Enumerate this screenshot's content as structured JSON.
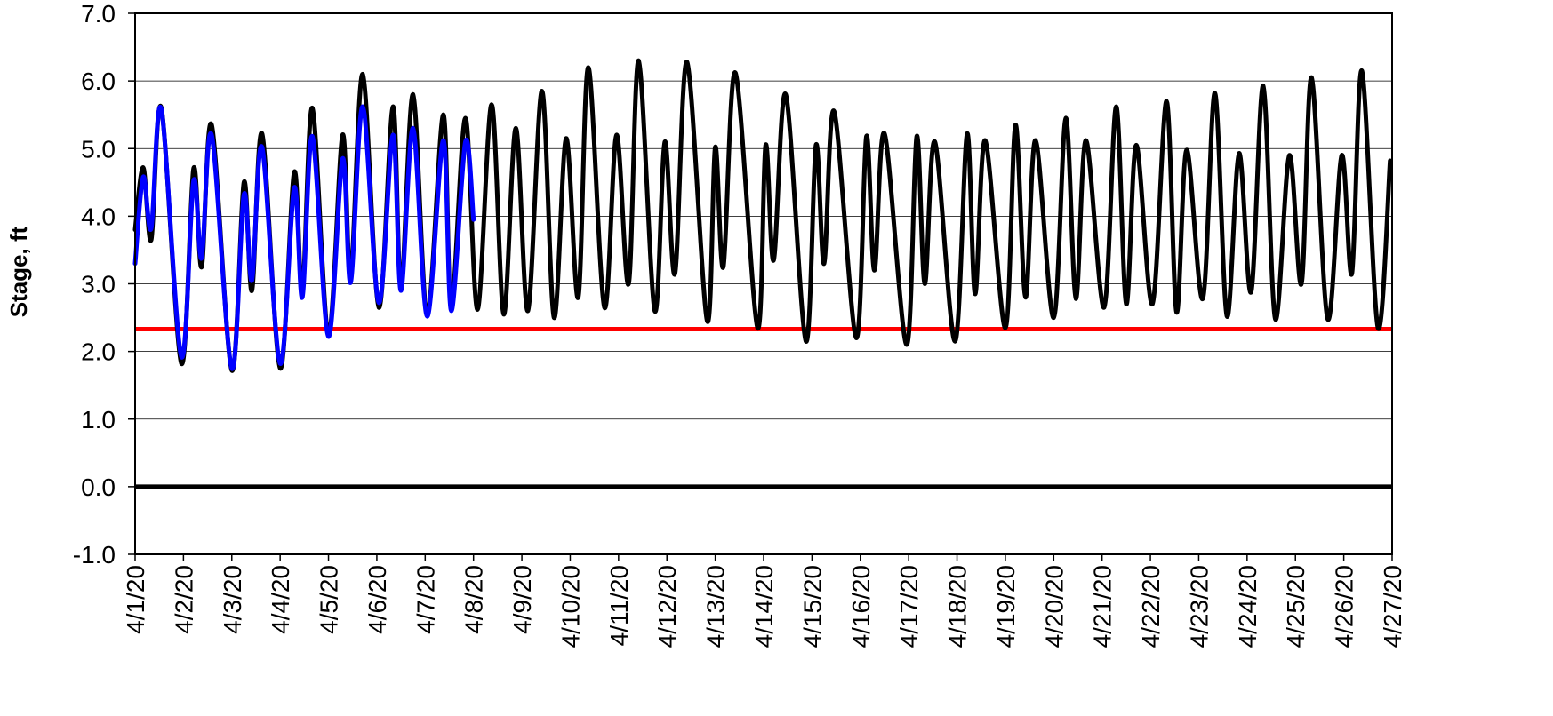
{
  "chart_data": {
    "type": "line",
    "title": "",
    "ylabel": "Stage, ft",
    "xlabel": "",
    "ylim": [
      -1.0,
      7.0
    ],
    "xlim": [
      "4/1/20",
      "4/27/20"
    ],
    "grid": true,
    "legend": "none",
    "y_ticks": [
      "-1.0",
      "0.0",
      "1.0",
      "2.0",
      "3.0",
      "4.0",
      "5.0",
      "6.0",
      "7.0"
    ],
    "x_ticks": [
      "4/1/20",
      "4/2/20",
      "4/3/20",
      "4/4/20",
      "4/5/20",
      "4/6/20",
      "4/7/20",
      "4/8/20",
      "4/9/20",
      "4/10/20",
      "4/11/20",
      "4/12/20",
      "4/13/20",
      "4/14/20",
      "4/15/20",
      "4/16/20",
      "4/17/20",
      "4/18/20",
      "4/19/20",
      "4/20/20",
      "4/21/20",
      "4/22/20",
      "4/23/20",
      "4/24/20",
      "4/25/20",
      "4/26/20",
      "4/27/20"
    ],
    "reference_lines": [
      {
        "y": 2.33,
        "color": "#ff0000"
      },
      {
        "y": 0.0,
        "color": "#000000"
      }
    ],
    "series": [
      {
        "color": "#000000",
        "points": [
          [
            "4/1/20 00:00",
            3.8
          ],
          [
            "4/1/20 04:00",
            4.72
          ],
          [
            "4/1/20 08:00",
            3.65
          ],
          [
            "4/1/20 13:00",
            5.6
          ],
          [
            "4/1/20 23:00",
            1.82
          ],
          [
            "4/2/20 05:00",
            4.7
          ],
          [
            "4/2/20 09:00",
            3.25
          ],
          [
            "4/2/20 14:00",
            5.35
          ],
          [
            "4/3/20 00:00",
            1.72
          ],
          [
            "4/3/20 06:00",
            4.5
          ],
          [
            "4/3/20 10:00",
            2.9
          ],
          [
            "4/3/20 15:00",
            5.22
          ],
          [
            "4/4/20 00:00",
            1.75
          ],
          [
            "4/4/20 07:00",
            4.65
          ],
          [
            "4/4/20 11:00",
            2.85
          ],
          [
            "4/4/20 16:00",
            5.6
          ],
          [
            "4/5/20 00:00",
            2.25
          ],
          [
            "4/5/20 07:00",
            5.2
          ],
          [
            "4/5/20 11:00",
            3.1
          ],
          [
            "4/5/20 17:00",
            6.1
          ],
          [
            "4/6/20 01:00",
            2.65
          ],
          [
            "4/6/20 08:00",
            5.62
          ],
          [
            "4/6/20 12:00",
            2.95
          ],
          [
            "4/6/20 18:00",
            5.8
          ],
          [
            "4/7/20 01:00",
            2.55
          ],
          [
            "4/7/20 09:00",
            5.5
          ],
          [
            "4/7/20 13:00",
            2.65
          ],
          [
            "4/7/20 20:00",
            5.45
          ],
          [
            "4/8/20 02:00",
            2.62
          ],
          [
            "4/8/20 09:00",
            5.65
          ],
          [
            "4/8/20 15:00",
            2.55
          ],
          [
            "4/8/20 21:00",
            5.3
          ],
          [
            "4/9/20 03:00",
            2.6
          ],
          [
            "4/9/20 10:00",
            5.85
          ],
          [
            "4/9/20 16:00",
            2.5
          ],
          [
            "4/9/20 22:00",
            5.15
          ],
          [
            "4/10/20 04:00",
            2.8
          ],
          [
            "4/10/20 09:00",
            6.2
          ],
          [
            "4/10/20 17:00",
            2.65
          ],
          [
            "4/10/20 23:00",
            5.2
          ],
          [
            "4/11/20 05:00",
            3.0
          ],
          [
            "4/11/20 10:00",
            6.3
          ],
          [
            "4/11/20 18:00",
            2.6
          ],
          [
            "4/11/20 23:00",
            5.1
          ],
          [
            "4/12/20 04:00",
            3.15
          ],
          [
            "4/12/20 10:00",
            6.28
          ],
          [
            "4/12/20 20:00",
            2.45
          ],
          [
            "4/13/20 00:00",
            5.02
          ],
          [
            "4/13/20 04:00",
            3.25
          ],
          [
            "4/13/20 10:00",
            6.12
          ],
          [
            "4/13/20 21:00",
            2.35
          ],
          [
            "4/14/20 01:00",
            5.05
          ],
          [
            "4/14/20 05:00",
            3.35
          ],
          [
            "4/14/20 11:00",
            5.8
          ],
          [
            "4/14/20 21:00",
            2.15
          ],
          [
            "4/15/20 02:00",
            5.05
          ],
          [
            "4/15/20 06:00",
            3.3
          ],
          [
            "4/15/20 11:00",
            5.55
          ],
          [
            "4/15/20 22:00",
            2.2
          ],
          [
            "4/16/20 03:00",
            5.18
          ],
          [
            "4/16/20 07:00",
            3.2
          ],
          [
            "4/16/20 12:00",
            5.22
          ],
          [
            "4/16/20 23:00",
            2.1
          ],
          [
            "4/17/20 04:00",
            5.18
          ],
          [
            "4/17/20 08:00",
            3.0
          ],
          [
            "4/17/20 13:00",
            5.1
          ],
          [
            "4/17/20 23:00",
            2.15
          ],
          [
            "4/18/20 05:00",
            5.22
          ],
          [
            "4/18/20 09:00",
            2.85
          ],
          [
            "4/18/20 14:00",
            5.12
          ],
          [
            "4/19/20 00:00",
            2.35
          ],
          [
            "4/19/20 05:00",
            5.35
          ],
          [
            "4/19/20 10:00",
            2.8
          ],
          [
            "4/19/20 15:00",
            5.12
          ],
          [
            "4/20/20 00:00",
            2.5
          ],
          [
            "4/20/20 06:00",
            5.45
          ],
          [
            "4/20/20 11:00",
            2.78
          ],
          [
            "4/20/20 16:00",
            5.12
          ],
          [
            "4/21/20 01:00",
            2.65
          ],
          [
            "4/21/20 07:00",
            5.62
          ],
          [
            "4/21/20 12:00",
            2.7
          ],
          [
            "4/21/20 17:00",
            5.05
          ],
          [
            "4/22/20 01:00",
            2.7
          ],
          [
            "4/22/20 08:00",
            5.7
          ],
          [
            "4/22/20 13:00",
            2.58
          ],
          [
            "4/22/20 18:00",
            4.98
          ],
          [
            "4/23/20 02:00",
            2.78
          ],
          [
            "4/23/20 08:00",
            5.82
          ],
          [
            "4/23/20 14:00",
            2.52
          ],
          [
            "4/23/20 20:00",
            4.93
          ],
          [
            "4/24/20 02:00",
            2.88
          ],
          [
            "4/24/20 08:00",
            5.93
          ],
          [
            "4/24/20 14:00",
            2.48
          ],
          [
            "4/24/20 21:00",
            4.9
          ],
          [
            "4/25/20 03:00",
            3.0
          ],
          [
            "4/25/20 08:00",
            6.05
          ],
          [
            "4/25/20 16:00",
            2.48
          ],
          [
            "4/25/20 23:00",
            4.9
          ],
          [
            "4/26/20 04:00",
            3.15
          ],
          [
            "4/26/20 09:00",
            6.15
          ],
          [
            "4/26/20 17:00",
            2.35
          ],
          [
            "4/26/20 23:00",
            4.82
          ]
        ]
      },
      {
        "color": "#0000ff",
        "points": [
          [
            "4/1/20 00:00",
            3.3
          ],
          [
            "4/1/20 04:00",
            4.58
          ],
          [
            "4/1/20 08:00",
            3.82
          ],
          [
            "4/1/20 13:00",
            5.58
          ],
          [
            "4/1/20 23:00",
            1.92
          ],
          [
            "4/2/20 05:00",
            4.52
          ],
          [
            "4/2/20 09:00",
            3.38
          ],
          [
            "4/2/20 14:00",
            5.2
          ],
          [
            "4/3/20 00:00",
            1.75
          ],
          [
            "4/3/20 06:00",
            4.32
          ],
          [
            "4/3/20 10:00",
            3.05
          ],
          [
            "4/3/20 15:00",
            5.02
          ],
          [
            "4/4/20 00:00",
            1.82
          ],
          [
            "4/4/20 07:00",
            4.42
          ],
          [
            "4/4/20 11:00",
            2.8
          ],
          [
            "4/4/20 16:00",
            5.18
          ],
          [
            "4/5/20 00:00",
            2.22
          ],
          [
            "4/5/20 07:00",
            4.85
          ],
          [
            "4/5/20 11:00",
            3.02
          ],
          [
            "4/5/20 17:00",
            5.62
          ],
          [
            "4/6/20 01:00",
            2.72
          ],
          [
            "4/6/20 08:00",
            5.2
          ],
          [
            "4/6/20 12:00",
            2.9
          ],
          [
            "4/6/20 18:00",
            5.3
          ],
          [
            "4/7/20 01:00",
            2.52
          ],
          [
            "4/7/20 09:00",
            5.12
          ],
          [
            "4/7/20 13:00",
            2.6
          ],
          [
            "4/7/20 20:00",
            5.1
          ],
          [
            "4/8/20 00:00",
            3.95
          ]
        ]
      }
    ]
  }
}
